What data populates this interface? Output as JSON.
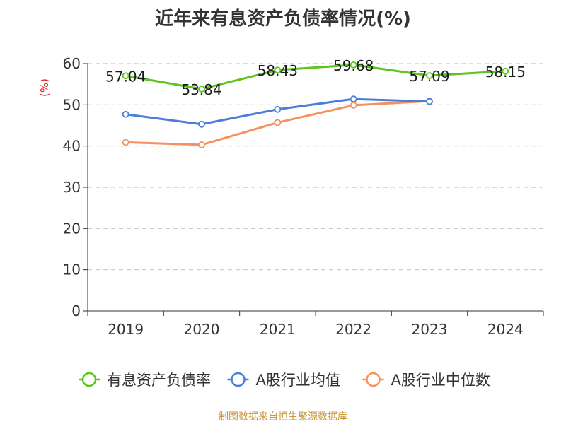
{
  "chart_data": {
    "type": "line",
    "title": "近年来有息资产负债率情况(%)",
    "ylabel": "(%)",
    "xlabel": "",
    "categories": [
      "2019",
      "2020",
      "2021",
      "2022",
      "2023",
      "2024"
    ],
    "ylim": [
      0,
      60
    ],
    "yticks": [
      0,
      10,
      20,
      30,
      40,
      50,
      60
    ],
    "grid": true,
    "legend_position": "bottom",
    "series": [
      {
        "name": "有息资产负债率",
        "color": "#5cc31f",
        "values": [
          57.04,
          53.84,
          58.43,
          59.68,
          57.09,
          58.15
        ],
        "labels": [
          "57.04",
          "53.84",
          "58.43",
          "59.68",
          "57.09",
          "58.15"
        ]
      },
      {
        "name": "A股行业均值",
        "color": "#4a7fd9",
        "values": [
          47.7,
          45.3,
          48.9,
          51.4,
          50.8,
          null
        ],
        "labels": []
      },
      {
        "name": "A股行业中位数",
        "color": "#f5915f",
        "values": [
          40.9,
          40.3,
          45.7,
          49.9,
          50.9,
          null
        ],
        "labels": []
      }
    ]
  },
  "footer": {
    "source": "制图数据来自恒生聚源数据库"
  }
}
